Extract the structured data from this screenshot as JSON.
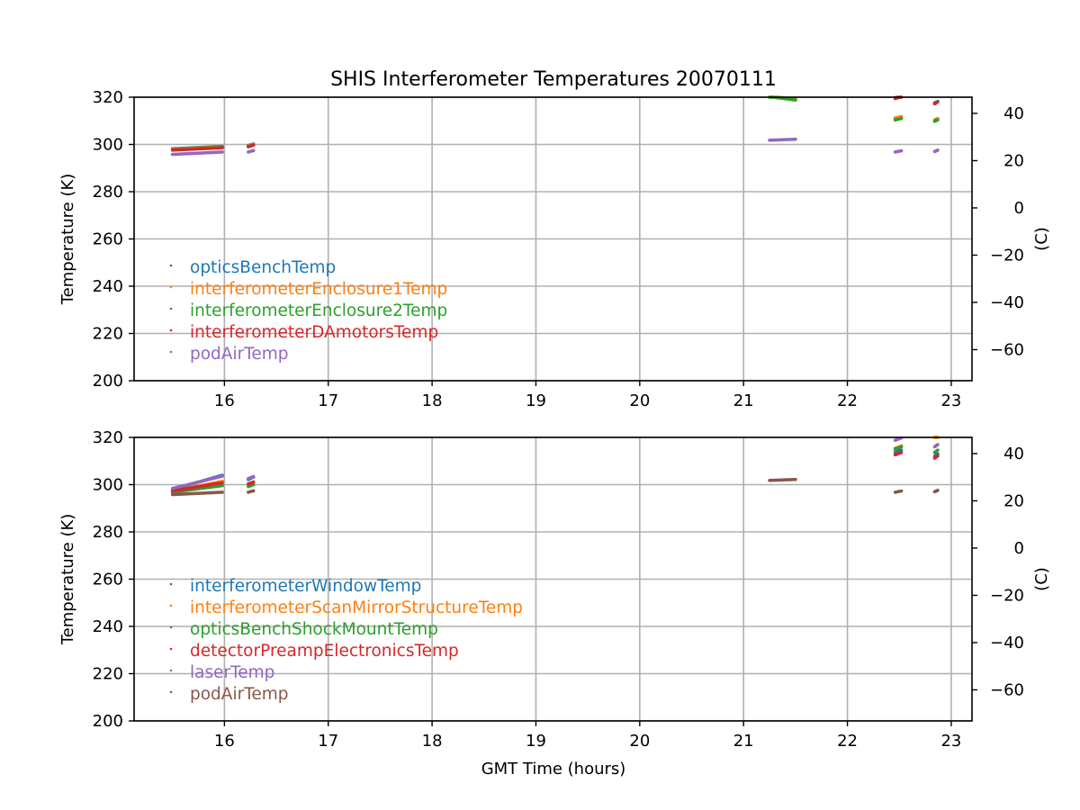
{
  "title": "SHIS Interferometer Temperatures 20070111",
  "xlabel": "GMT Time (hours)",
  "chart_data": [
    {
      "type": "scatter",
      "title": "SHIS Interferometer Temperatures 20070111",
      "xlabel": "",
      "ylabel": "Temperature (K)",
      "ylabel_right": "(C)",
      "xlim": [
        15.13,
        23.2
      ],
      "ylim": [
        200,
        320
      ],
      "ylim_right": [
        -73.15,
        46.85
      ],
      "xticks": [
        16,
        17,
        18,
        19,
        20,
        21,
        22,
        23
      ],
      "yticks": [
        200,
        220,
        240,
        260,
        280,
        300,
        320
      ],
      "yticks_right": [
        -60,
        -40,
        -20,
        0,
        20,
        40
      ],
      "grid": true,
      "legend_position": "lower-left",
      "series": [
        {
          "name": "opticsBenchTemp",
          "color": "#1f77b4",
          "segments": [
            [
              15.5,
              15.98,
              298.2,
              299.2
            ],
            [
              16.23,
              16.28,
              299.6,
              300.2
            ],
            [
              22.46,
              22.52,
              319.8,
              320.5
            ],
            [
              22.84,
              22.87,
              317.6,
              318.2
            ]
          ]
        },
        {
          "name": "interferometerEnclosure1Temp",
          "color": "#ff7f0e",
          "segments": [
            [
              15.5,
              15.98,
              298.0,
              299.0
            ],
            [
              16.23,
              16.28,
              299.4,
              300.0
            ],
            [
              21.25,
              21.5,
              320.4,
              319.2
            ],
            [
              22.46,
              22.52,
              311.2,
              311.8
            ],
            [
              22.84,
              22.87,
              310.4,
              311.0
            ]
          ]
        },
        {
          "name": "interferometerEnclosure2Temp",
          "color": "#2ca02c",
          "segments": [
            [
              15.5,
              15.98,
              297.8,
              298.8
            ],
            [
              16.23,
              16.28,
              299.2,
              299.8
            ],
            [
              21.25,
              21.5,
              320.2,
              318.8
            ],
            [
              22.46,
              22.52,
              310.4,
              311.0
            ],
            [
              22.84,
              22.87,
              309.8,
              310.4
            ]
          ]
        },
        {
          "name": "interferometerDAmotorsTemp",
          "color": "#d62728",
          "segments": [
            [
              15.5,
              15.98,
              297.6,
              298.6
            ],
            [
              16.23,
              16.28,
              299.0,
              299.7
            ],
            [
              22.46,
              22.52,
              319.4,
              320.2
            ],
            [
              22.84,
              22.87,
              317.2,
              318.0
            ]
          ]
        },
        {
          "name": "podAirTemp",
          "color": "#9467bd",
          "segments": [
            [
              15.5,
              15.98,
              295.8,
              296.8
            ],
            [
              16.23,
              16.28,
              296.8,
              297.4
            ],
            [
              21.25,
              21.5,
              301.8,
              302.2
            ],
            [
              22.46,
              22.52,
              296.8,
              297.3
            ],
            [
              22.84,
              22.87,
              297.0,
              297.6
            ]
          ]
        }
      ]
    },
    {
      "type": "scatter",
      "title": "",
      "xlabel": "GMT Time (hours)",
      "ylabel": "Temperature (K)",
      "ylabel_right": "(C)",
      "xlim": [
        15.13,
        23.2
      ],
      "ylim": [
        200,
        320
      ],
      "ylim_right": [
        -73.15,
        46.85
      ],
      "xticks": [
        16,
        17,
        18,
        19,
        20,
        21,
        22,
        23
      ],
      "yticks": [
        200,
        220,
        240,
        260,
        280,
        300,
        320
      ],
      "yticks_right": [
        -60,
        -40,
        -20,
        0,
        20,
        40
      ],
      "grid": true,
      "legend_position": "lower-left",
      "series": [
        {
          "name": "interferometerWindowTemp",
          "color": "#1f77b4",
          "segments": [
            [
              15.5,
              15.98,
              298.0,
              304.0
            ],
            [
              16.23,
              16.28,
              302.2,
              303.2
            ],
            [
              22.46,
              22.52,
              313.6,
              314.6
            ],
            [
              22.84,
              22.87,
              312.0,
              313.0
            ]
          ]
        },
        {
          "name": "interferometerScanMirrorStructureTemp",
          "color": "#ff7f0e",
          "segments": [
            [
              15.5,
              15.98,
              297.2,
              301.4
            ],
            [
              16.23,
              16.28,
              300.4,
              301.2
            ],
            [
              22.46,
              22.52,
              315.4,
              316.4
            ],
            [
              22.84,
              22.87,
              320.0,
              320.5
            ]
          ]
        },
        {
          "name": "opticsBenchShockMountTemp",
          "color": "#2ca02c",
          "segments": [
            [
              15.5,
              15.98,
              296.8,
              299.6
            ],
            [
              16.23,
              16.28,
              299.2,
              300.0
            ],
            [
              22.46,
              22.52,
              315.0,
              316.0
            ],
            [
              22.84,
              22.87,
              313.6,
              314.6
            ]
          ]
        },
        {
          "name": "detectorPreampElectronicsTemp",
          "color": "#d62728",
          "segments": [
            [
              15.5,
              15.98,
              297.4,
              300.8
            ],
            [
              16.23,
              16.28,
              300.2,
              301.0
            ],
            [
              22.46,
              22.52,
              312.6,
              313.6
            ],
            [
              22.84,
              22.87,
              311.2,
              312.2
            ]
          ]
        },
        {
          "name": "laserTemp",
          "color": "#9467bd",
          "segments": [
            [
              15.5,
              15.98,
              298.4,
              303.6
            ],
            [
              16.23,
              16.28,
              302.6,
              303.4
            ],
            [
              22.46,
              22.52,
              318.8,
              319.8
            ],
            [
              22.84,
              22.87,
              316.0,
              317.0
            ]
          ]
        },
        {
          "name": "podAirTemp",
          "color": "#8c564b",
          "segments": [
            [
              15.5,
              15.98,
              295.8,
              296.8
            ],
            [
              16.23,
              16.28,
              296.8,
              297.4
            ],
            [
              21.25,
              21.5,
              301.8,
              302.2
            ],
            [
              22.46,
              22.52,
              296.8,
              297.3
            ],
            [
              22.84,
              22.87,
              297.0,
              297.6
            ]
          ]
        }
      ]
    }
  ]
}
